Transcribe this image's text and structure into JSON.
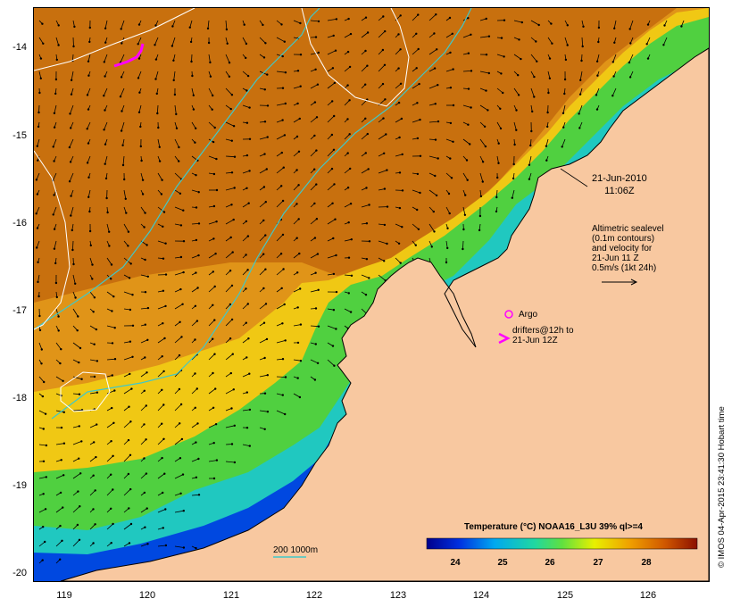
{
  "map": {
    "lat_ticks": [
      "-14",
      "-15",
      "-16",
      "-17",
      "-18",
      "-19",
      "-20"
    ],
    "lon_ticks": [
      "119",
      "120",
      "121",
      "122",
      "123",
      "124",
      "125",
      "126"
    ],
    "lat_range": [
      -20.1,
      -13.6
    ],
    "lon_range": [
      118.65,
      126.7
    ]
  },
  "annotations": {
    "date_line1": "21-Jun-2010",
    "date_line2": "11:06Z",
    "altimetry_lines": [
      "Altimetric sealevel",
      "(0.1m contours)",
      "and velocity for",
      "21-Jun 11 Z",
      "0.5m/s (1kt 24h)"
    ],
    "argo_label": "Argo",
    "drifters_line1": "drifters@12h to",
    "drifters_line2": "21-Jun 12Z",
    "scale_label": "200  1000m",
    "credit": "© IMOS 04-Apr-2015 23:41:30 Hobart time"
  },
  "colorbar": {
    "title": "Temperature (°C) NOAA16_L3U 39% ql>=4",
    "ticks": [
      "24",
      "25",
      "26",
      "27",
      "28"
    ],
    "range": [
      23.4,
      28.9
    ]
  },
  "colors": {
    "land": "#f8c8a0",
    "warm_sst": "#c46a10",
    "bathymetry_contour": "#40c8c8",
    "sealevel_contour": "#ffffff",
    "drifter": "#ff00ff"
  }
}
